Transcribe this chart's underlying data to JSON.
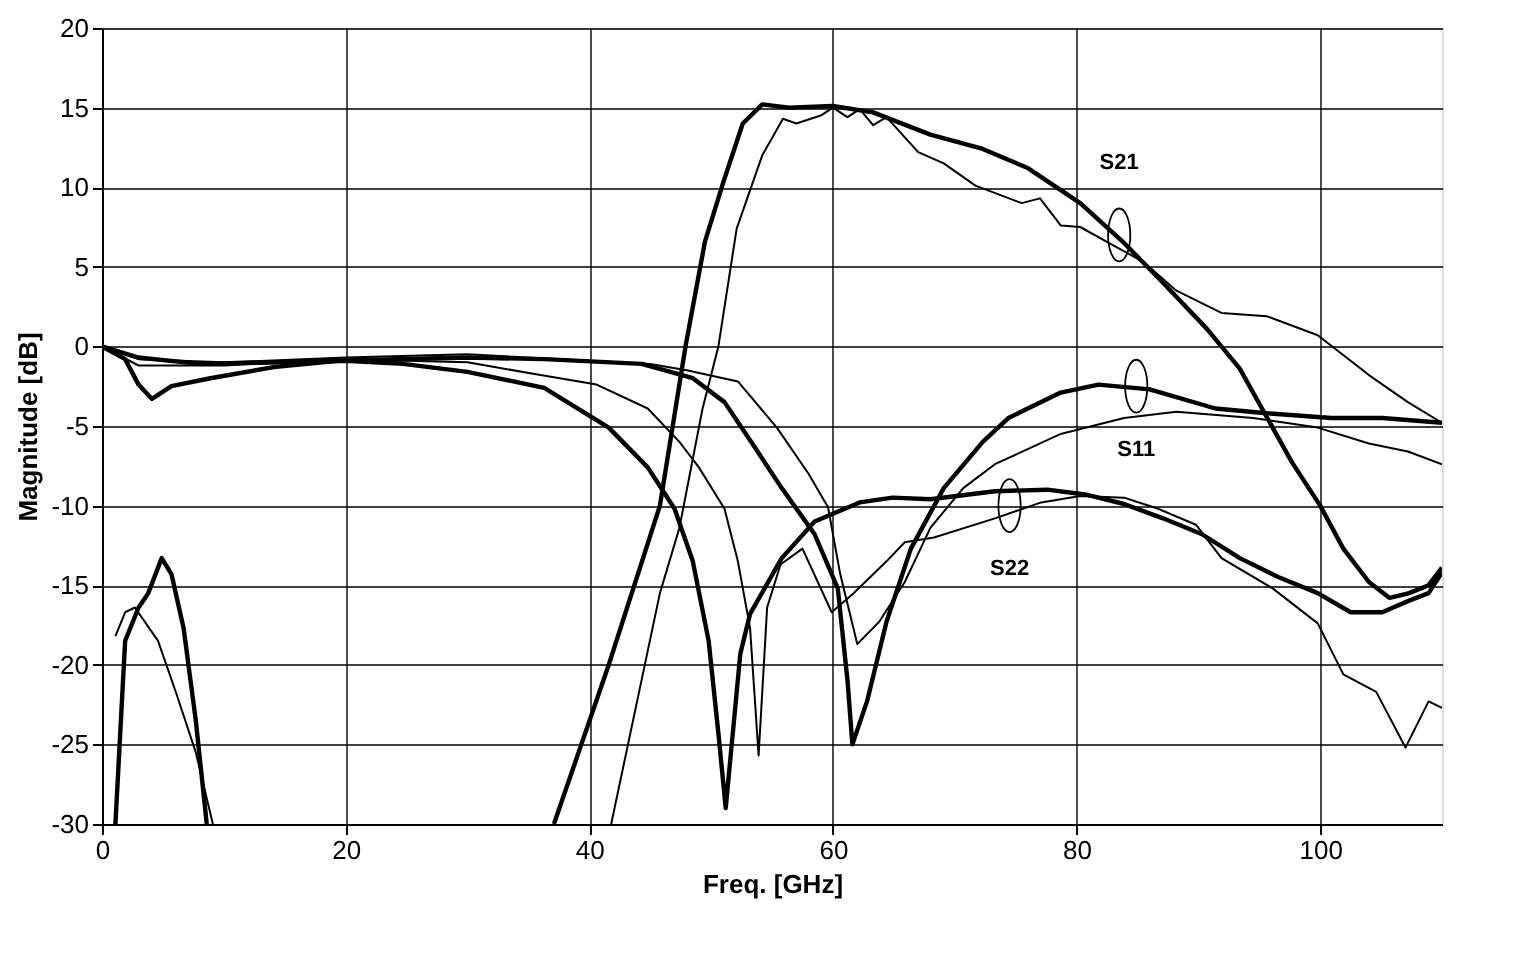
{
  "chart_data": {
    "type": "line",
    "xlabel": "Freq. [GHz]",
    "ylabel": "Magnitude [dB]",
    "xlim": [
      0,
      110
    ],
    "xticks": [
      0,
      20,
      40,
      60,
      80,
      100
    ],
    "ylim": [
      -30,
      20
    ],
    "yticks": [
      -30,
      -25,
      -20,
      -15,
      -10,
      -5,
      0,
      5,
      10,
      15,
      20
    ],
    "grid": true,
    "marker": "none",
    "line_style": "solid",
    "series": [
      {
        "color": "#000000",
        "x": [
          1.1,
          1.9,
          3,
          3.8,
          4.9,
          5.7,
          6.7,
          7.7,
          8.6,
          20,
          37.1,
          41.6,
          45.8,
          47.9,
          49.5,
          51,
          52.6,
          54.2,
          56.4,
          60,
          63.3,
          68,
          72.3,
          76,
          80.3,
          83.9,
          87.1,
          90.7,
          93.4,
          97.7,
          100,
          101.9,
          104,
          105.7,
          107.3,
          108.9,
          110
        ],
        "values": [
          -30,
          -18.5,
          -16.4,
          -15.5,
          -13.3,
          -14.3,
          -17.7,
          -23.5,
          -30,
          null,
          -30,
          -20,
          -10,
          0,
          6.6,
          10.3,
          14,
          15.2,
          15,
          15.1,
          14.7,
          13.3,
          12.4,
          11.2,
          9,
          6.5,
          4,
          1.1,
          -1.4,
          -7.3,
          -10,
          -12.7,
          -14.8,
          -15.8,
          -15.5,
          -15,
          -13.9
        ]
      },
      {
        "color": "#000000",
        "x": [
          0,
          1.9,
          3,
          4.1,
          5.7,
          8.9,
          14.1,
          19.4,
          30,
          36.3,
          44.3,
          48.5,
          51.1,
          53.3,
          55.8,
          58.5,
          60.4,
          61.2,
          61.6,
          62.8,
          64.4,
          66.4,
          69.1,
          72.3,
          74.4,
          78.7,
          81.8,
          86,
          91.4,
          95.6,
          100.9,
          105.1,
          110
        ],
        "values": [
          0,
          -0.8,
          -2.4,
          -3.3,
          -2.5,
          -2,
          -1.3,
          -0.9,
          -0.7,
          -0.8,
          -1.1,
          -2,
          -3.5,
          -6,
          -8.9,
          -11.8,
          -15.2,
          -21,
          -25,
          -22.3,
          -17.3,
          -12.7,
          -8.9,
          -6,
          -4.5,
          -2.9,
          -2.4,
          -2.7,
          -3.9,
          -4.2,
          -4.5,
          -4.5,
          -4.8
        ]
      },
      {
        "color": "#000000",
        "x": [
          0,
          3,
          8,
          15,
          20,
          24.7,
          30,
          36.3,
          41.6,
          44.8,
          47,
          48.5,
          49.8,
          50.6,
          51.2,
          52.4,
          53.2,
          55.8,
          58.5,
          62.2,
          64.9,
          68,
          73.3,
          77.6,
          80.7,
          83.9,
          87.1,
          90.3,
          93.4,
          96.6,
          99.8,
          102.5,
          105.1,
          107.2,
          108.9,
          110
        ],
        "values": [
          0,
          -0.7,
          -1.1,
          -1,
          -0.9,
          -1.1,
          -1.6,
          -2.6,
          -5.1,
          -7.6,
          -10.2,
          -13.5,
          -18.5,
          -24.3,
          -29,
          -19.3,
          -16.8,
          -13.3,
          -11,
          -9.8,
          -9.5,
          -9.6,
          -9.1,
          -9,
          -9.3,
          -9.9,
          -10.8,
          -11.8,
          -13.3,
          -14.5,
          -15.5,
          -16.7,
          -16.7,
          -16,
          -15.5,
          -14.2
        ]
      },
      {
        "color": "#000000",
        "x": [
          1.1,
          1.9,
          2.7,
          4.6,
          6.1,
          7.7,
          9.1,
          20,
          41.8,
          45.8,
          47.4,
          49.3,
          50.6,
          52.1,
          54.2,
          55.9,
          57,
          59,
          60,
          61.2,
          62.2,
          63.3,
          64.4,
          67,
          69.1,
          71.7,
          75.5,
          77,
          78.7,
          80.3,
          82.9,
          85.5,
          88.2,
          91.9,
          95.6,
          99.8,
          104,
          107.2,
          110
        ],
        "values": [
          -18.2,
          -16.7,
          -16.4,
          -18.5,
          -21.8,
          -25.5,
          -30,
          null,
          -30,
          -15.5,
          -11.4,
          -3.9,
          0,
          7.4,
          12,
          14.3,
          14,
          14.5,
          15,
          14.4,
          14.9,
          13.9,
          14.4,
          12.2,
          11.5,
          10.1,
          9,
          9.3,
          7.6,
          7.5,
          6.4,
          5.3,
          3.5,
          2.1,
          1.9,
          0.7,
          -1.8,
          -3.5,
          -4.8
        ]
      },
      {
        "color": "#000000",
        "x": [
          0,
          3,
          10,
          20,
          30,
          40,
          45,
          48,
          52.2,
          55.4,
          58,
          59.6,
          60.6,
          62,
          63.8,
          65.9,
          68,
          70.7,
          73.3,
          78.7,
          83.9,
          88.2,
          94.5,
          99.8,
          104,
          107.2,
          110
        ],
        "values": [
          0,
          -0.8,
          -1,
          -0.7,
          -0.5,
          -0.9,
          -1.1,
          -1.5,
          -2.2,
          -5.1,
          -8,
          -10.1,
          -14.3,
          -18.7,
          -17.3,
          -14.8,
          -11.4,
          -8.9,
          -7.4,
          -5.5,
          -4.5,
          -4.1,
          -4.5,
          -5.1,
          -6.1,
          -6.6,
          -7.4
        ]
      },
      {
        "color": "#000000",
        "x": [
          0,
          3,
          10,
          20,
          30,
          36,
          40.6,
          44.8,
          47.4,
          49,
          51.1,
          52.2,
          53.2,
          53.9,
          54.6,
          55.7,
          57.5,
          59.9,
          61.7,
          64.4,
          65.9,
          68.3,
          73.3,
          77.1,
          80.3,
          83.9,
          86.7,
          89.8,
          91.9,
          96.1,
          99.8,
          101.9,
          104.6,
          107,
          108.9,
          110
        ],
        "values": [
          0,
          -1.2,
          -1.2,
          -0.8,
          -1,
          -1.8,
          -2.4,
          -3.9,
          -6,
          -7.6,
          -10.2,
          -13.5,
          -17.7,
          -25.7,
          -16.4,
          -13.7,
          -12.7,
          -16.7,
          -15.5,
          -13.5,
          -12.3,
          -12,
          -10.8,
          -9.8,
          -9.4,
          -9.5,
          -10.2,
          -11.2,
          -13.3,
          -15.2,
          -17.4,
          -20.6,
          -21.7,
          -25.2,
          -22.3,
          -22.7
        ]
      }
    ],
    "annotations": [
      {
        "text": "S21",
        "x": 83.5,
        "y": 7
      },
      {
        "text": "S11",
        "x": 84.9,
        "y": -2.5
      },
      {
        "text": "S22",
        "x": 74.5,
        "y": -10
      }
    ]
  }
}
